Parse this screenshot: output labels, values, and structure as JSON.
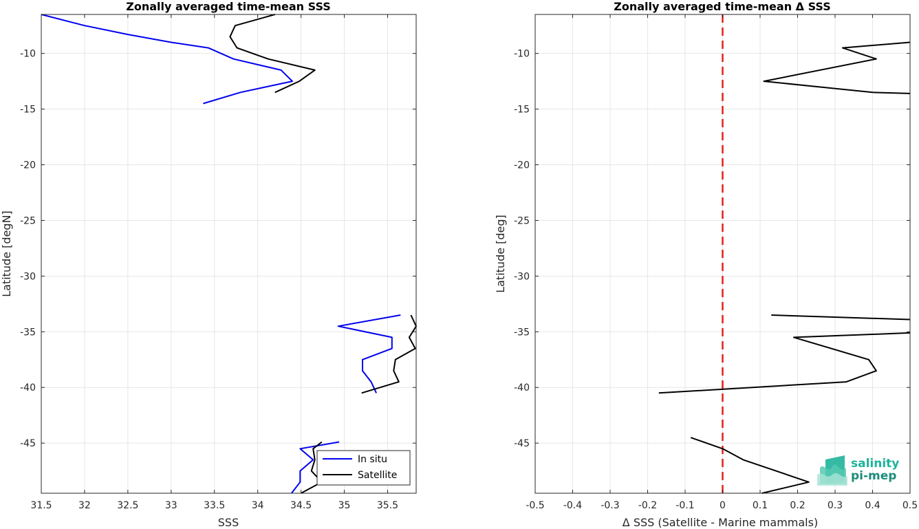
{
  "logo": {
    "line1": "salinity",
    "line2": "pi-mep",
    "color1": "#1fb39a",
    "color2": "#1b8c7a"
  },
  "colors": {
    "insitu": "#0000ee",
    "satellite": "#000000",
    "zero_line": "#e0201b",
    "grid": "#e6e6e6",
    "axis": "#262626"
  },
  "chart_data": [
    {
      "type": "line",
      "title": "Zonally averaged time-mean SSS",
      "xlabel": "SSS",
      "ylabel": "Latitude [degN]",
      "xlim": [
        31.5,
        35.83
      ],
      "ylim": [
        -49.5,
        -6.5
      ],
      "xticks": [
        31.5,
        32,
        32.5,
        33,
        33.5,
        34,
        34.5,
        35,
        35.5
      ],
      "xtick_labels": [
        "31.5",
        "32",
        "32.5",
        "33",
        "33.5",
        "34",
        "34.5",
        "35",
        "35.5"
      ],
      "yticks": [
        -10,
        -15,
        -20,
        -25,
        -30,
        -35,
        -40,
        -45
      ],
      "ytick_labels": [
        "-10",
        "-15",
        "-20",
        "-25",
        "-30",
        "-35",
        "-40",
        "-45"
      ],
      "grid": true,
      "legend": {
        "position": "bottom-right",
        "entries": [
          "In situ",
          "Satellite"
        ]
      },
      "series": [
        {
          "name": "In situ",
          "color": "#0000ee",
          "segments": [
            [
              [
                31.5,
                -6.5
              ],
              [
                32.0,
                -7.5
              ],
              [
                32.5,
                -8.3
              ],
              [
                33.0,
                -9.0
              ],
              [
                33.43,
                -9.5
              ],
              [
                33.72,
                -10.5
              ],
              [
                34.27,
                -11.5
              ],
              [
                34.4,
                -12.5
              ],
              [
                33.8,
                -13.5
              ],
              [
                33.37,
                -14.5
              ]
            ],
            [
              [
                35.65,
                -33.5
              ],
              [
                34.93,
                -34.5
              ],
              [
                35.55,
                -35.5
              ],
              [
                35.55,
                -36.5
              ],
              [
                35.21,
                -37.5
              ],
              [
                35.21,
                -38.5
              ],
              [
                35.31,
                -39.5
              ],
              [
                35.37,
                -40.5
              ]
            ],
            [
              [
                34.94,
                -44.9
              ],
              [
                34.49,
                -45.5
              ],
              [
                34.64,
                -46.5
              ],
              [
                34.49,
                -47.5
              ],
              [
                34.49,
                -48.5
              ],
              [
                34.39,
                -49.5
              ]
            ]
          ]
        },
        {
          "name": "Satellite",
          "color": "#000000",
          "segments": [
            [
              [
                34.2,
                -6.5
              ],
              [
                33.74,
                -7.5
              ],
              [
                33.68,
                -8.5
              ],
              [
                33.76,
                -9.5
              ],
              [
                34.12,
                -10.5
              ],
              [
                34.66,
                -11.5
              ],
              [
                34.48,
                -12.5
              ],
              [
                34.2,
                -13.5
              ]
            ],
            [
              [
                35.77,
                -33.5
              ],
              [
                35.83,
                -34.5
              ],
              [
                35.75,
                -35.5
              ],
              [
                35.82,
                -36.5
              ],
              [
                35.59,
                -37.5
              ],
              [
                35.57,
                -38.5
              ],
              [
                35.63,
                -39.5
              ],
              [
                35.2,
                -40.5
              ]
            ],
            [
              [
                34.74,
                -44.9
              ],
              [
                34.64,
                -45.5
              ],
              [
                34.66,
                -46.5
              ],
              [
                34.62,
                -47.5
              ],
              [
                34.74,
                -48.5
              ],
              [
                34.5,
                -49.5
              ]
            ]
          ]
        }
      ]
    },
    {
      "type": "line",
      "title": "Zonally averaged time-mean Δ SSS",
      "xlabel": "Δ SSS (Satellite - Marine mammals)",
      "ylabel": "Latitude [deg]",
      "xlim": [
        -0.5,
        0.5
      ],
      "ylim": [
        -49.5,
        -6.5
      ],
      "xticks": [
        -0.5,
        -0.4,
        -0.3,
        -0.2,
        -0.1,
        0,
        0.1,
        0.2,
        0.3,
        0.4,
        0.5
      ],
      "xtick_labels": [
        "-0.5",
        "-0.4",
        "-0.3",
        "-0.2",
        "-0.1",
        "0",
        "0.1",
        "0.2",
        "0.3",
        "0.4",
        "0.5"
      ],
      "yticks": [
        -10,
        -15,
        -20,
        -25,
        -30,
        -35,
        -40,
        -45
      ],
      "ytick_labels": [
        "-10",
        "-15",
        "-20",
        "-25",
        "-30",
        "-35",
        "-40",
        "-45"
      ],
      "grid": true,
      "reference_line": {
        "x": 0,
        "style": "dashed",
        "color": "#e0201b"
      },
      "series": [
        {
          "color": "#000000",
          "segments": [
            [
              [
                0.5,
                -9.0
              ],
              [
                0.32,
                -9.5
              ],
              [
                0.41,
                -10.5
              ],
              [
                0.11,
                -12.5
              ],
              [
                0.4,
                -13.5
              ],
              [
                0.5,
                -13.6
              ]
            ],
            [
              [
                0.13,
                -33.5
              ],
              [
                0.5,
                -33.9
              ]
            ],
            [
              [
                0.5,
                -35.1
              ],
              [
                0.19,
                -35.5
              ],
              [
                0.39,
                -37.5
              ],
              [
                0.41,
                -38.5
              ],
              [
                0.33,
                -39.5
              ],
              [
                -0.17,
                -40.5
              ]
            ],
            [
              [
                -0.085,
                -44.5
              ],
              [
                0.0,
                -45.5
              ],
              [
                0.055,
                -46.5
              ],
              [
                0.23,
                -48.5
              ],
              [
                0.105,
                -49.5
              ]
            ]
          ]
        }
      ]
    }
  ]
}
